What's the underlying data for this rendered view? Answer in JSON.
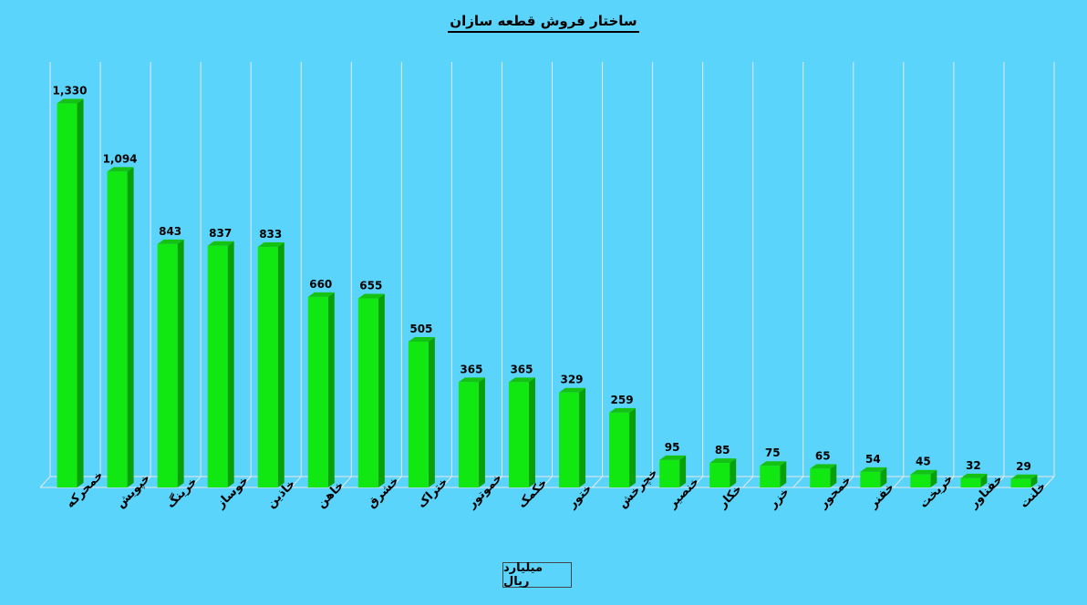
{
  "chart_data": {
    "type": "bar",
    "title": "ساختار فروش قطعه سازان",
    "xlabel": "میلیارد ریال",
    "ylabel": "",
    "ylim": [
      0,
      1400
    ],
    "grid": "vertical",
    "legend": "none",
    "bar_color": "#11e811",
    "background": "#5ad4fb",
    "categories": [
      "خمحرکه",
      "خپویش",
      "خرینگ",
      "خوساز",
      "خاذین",
      "خاهن",
      "خشرق",
      "ختراک",
      "خموتور",
      "خکمک",
      "ختور",
      "خچرخش",
      "خنصیر",
      "خکار",
      "خزر",
      "خمحور",
      "خفنر",
      "خریخت",
      "خفناور",
      "خلنت"
    ],
    "values": [
      1330,
      1094,
      843,
      837,
      833,
      660,
      655,
      505,
      365,
      365,
      329,
      259,
      95,
      85,
      75,
      65,
      54,
      45,
      32,
      29
    ],
    "value_labels": [
      "1,330",
      "1,094",
      "843",
      "837",
      "833",
      "660",
      "655",
      "505",
      "365",
      "365",
      "329",
      "259",
      "95",
      "85",
      "75",
      "65",
      "54",
      "45",
      "32",
      "29"
    ]
  }
}
